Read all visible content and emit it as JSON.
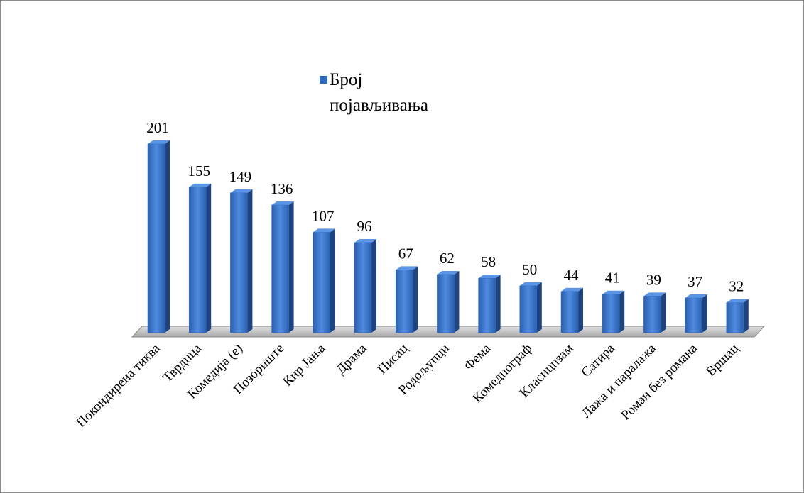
{
  "chart_data": {
    "type": "bar",
    "categories": [
      "Покондирена тиква",
      "Тврдица",
      "Комедија (е)",
      "Позориште",
      "Кир Јања",
      "Драма",
      "Писац",
      "Родољупци",
      "Фема",
      "Комедиограф",
      "Класицизам",
      "Сатира",
      "Лажа и паралажа",
      "Роман без романа",
      "Вршац"
    ],
    "series": [
      {
        "name": "Број појављивања",
        "color": "#2e6cc2",
        "values": [
          201,
          155,
          149,
          136,
          107,
          96,
          67,
          62,
          58,
          50,
          44,
          41,
          39,
          37,
          32
        ]
      }
    ]
  }
}
